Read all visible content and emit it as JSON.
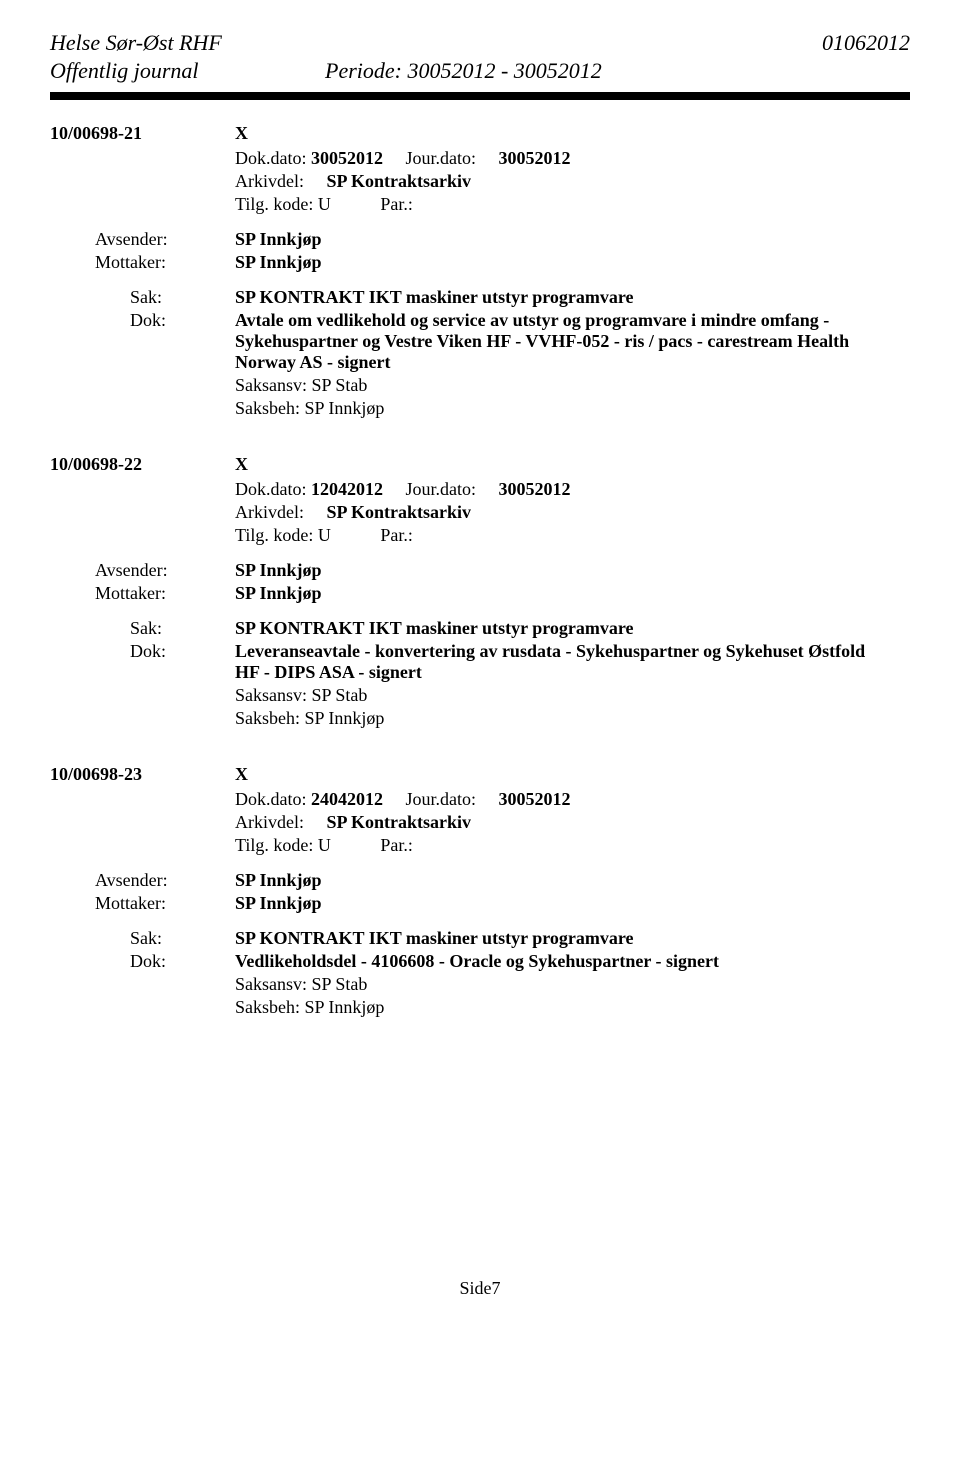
{
  "header": {
    "org": "Helse Sør-Øst RHF",
    "date": "01062012",
    "journal": "Offentlig journal",
    "period_label": "Periode:",
    "period_value": "30052012 - 30052012"
  },
  "labels": {
    "dokdato": "Dok.dato:",
    "jourdato": "Jour.dato:",
    "arkivdel": "Arkivdel:",
    "tilgkode": "Tilg. kode:",
    "par": "Par.:",
    "avsender": "Avsender:",
    "mottaker": "Mottaker:",
    "sak": "Sak:",
    "dok": "Dok:",
    "saksansv": "Saksansv:",
    "saksbeh": "Saksbeh:"
  },
  "entries": [
    {
      "case": "10/00698-21",
      "x": "X",
      "dokdato": "30052012",
      "jourdato": "30052012",
      "arkivdel": "SP Kontraktsarkiv",
      "tilgkode": "U",
      "par": "",
      "avsender": "SP Innkjøp",
      "mottaker": "SP Innkjøp",
      "sak": "SP KONTRAKT IKT maskiner utstyr programvare",
      "dok": "Avtale om vedlikehold og service av utstyr og programvare i mindre omfang - Sykehuspartner og Vestre Viken HF - VVHF-052 - ris / pacs - carestream Health Norway AS - signert",
      "saksansv": "SP Stab",
      "saksbeh": "SP Innkjøp"
    },
    {
      "case": "10/00698-22",
      "x": "X",
      "dokdato": "12042012",
      "jourdato": "30052012",
      "arkivdel": "SP Kontraktsarkiv",
      "tilgkode": "U",
      "par": "",
      "avsender": "SP Innkjøp",
      "mottaker": "SP Innkjøp",
      "sak": "SP KONTRAKT IKT maskiner utstyr programvare",
      "dok": "Leveranseavtale - konvertering av rusdata - Sykehuspartner og Sykehuset Østfold HF - DIPS ASA - signert",
      "saksansv": "SP Stab",
      "saksbeh": "SP Innkjøp"
    },
    {
      "case": "10/00698-23",
      "x": "X",
      "dokdato": "24042012",
      "jourdato": "30052012",
      "arkivdel": "SP Kontraktsarkiv",
      "tilgkode": "U",
      "par": "",
      "avsender": "SP Innkjøp",
      "mottaker": "SP Innkjøp",
      "sak": "SP KONTRAKT IKT maskiner utstyr programvare",
      "dok": "Vedlikeholdsdel - 4106608 - Oracle og Sykehuspartner - signert",
      "saksansv": "SP Stab",
      "saksbeh": "SP Innkjøp"
    }
  ],
  "footer": {
    "page": "Side7"
  }
}
